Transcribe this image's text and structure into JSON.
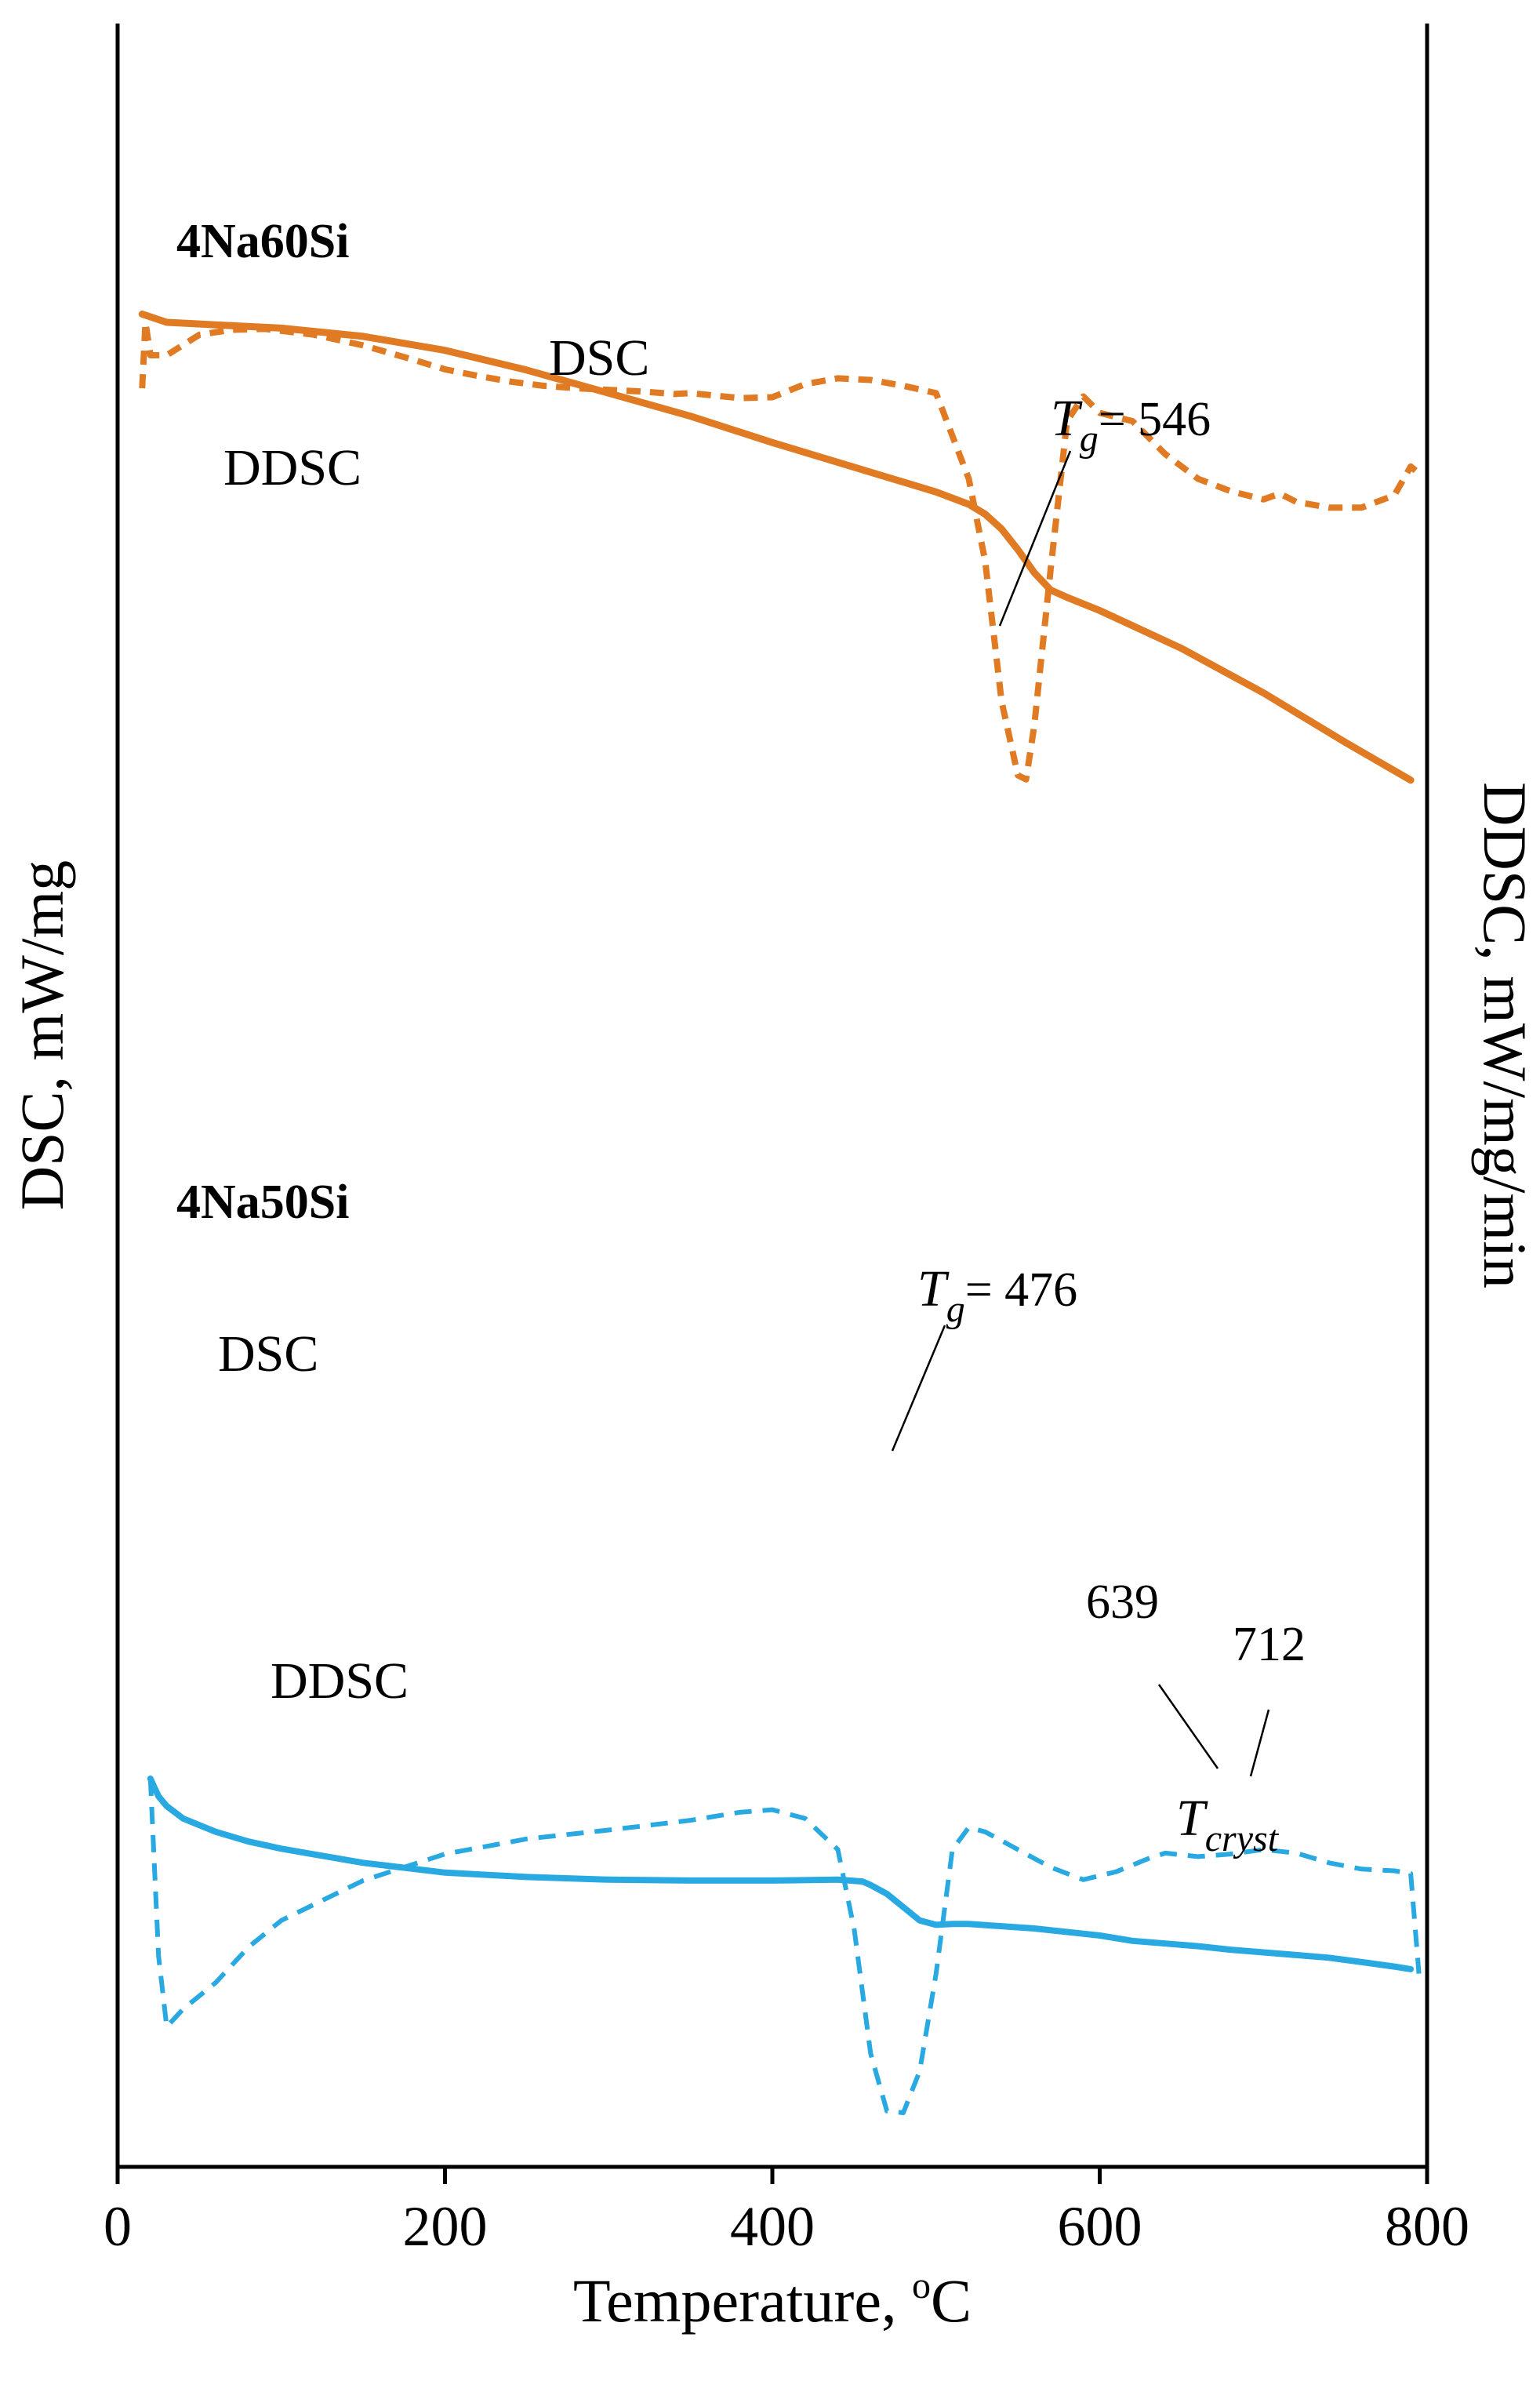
{
  "chart_data": {
    "type": "line",
    "xlabel": "Temperature, ",
    "xlabel_sup": "o",
    "xlabel_unit": "C",
    "ylabel_left": "DSC, mW/mg",
    "ylabel_right": "DDSC, mW/mg/min",
    "xlim": [
      0,
      800
    ],
    "xticks": [
      "0",
      "200",
      "400",
      "600",
      "800"
    ],
    "xtick_values": [
      0,
      200,
      400,
      600,
      800
    ],
    "grid": false,
    "panels": [
      {
        "name": "4Na60Si",
        "color": "#E07B24",
        "series": [
          {
            "name": "DSC",
            "style": "solid",
            "x": [
              15,
              30,
              60,
              100,
              150,
              200,
              250,
              300,
              350,
              400,
              450,
              500,
              520,
              530,
              540,
              550,
              560,
              570,
              580,
              600,
              650,
              700,
              750,
              790
            ],
            "y": [
              99.0,
              98.0,
              97.7,
              97.3,
              96.3,
              94.6,
              92.2,
              89.4,
              86.6,
              83.4,
              80.4,
              77.4,
              75.9,
              74.7,
              72.9,
              70.4,
              67.6,
              65.5,
              64.6,
              63.0,
              58.4,
              53.0,
              47.0,
              42.4
            ]
          },
          {
            "name": "DDSC",
            "style": "dashed",
            "x": [
              15,
              17,
              20,
              30,
              50,
              70,
              90,
              120,
              150,
              180,
              200,
              220,
              240,
              260,
              280,
              300,
              320,
              340,
              350,
              360,
              380,
              400,
              420,
              440,
              460,
              480,
              500,
              520,
              530,
              540,
              550,
              555,
              560,
              570,
              580,
              590,
              600,
              620,
              640,
              660,
              680,
              700,
              710,
              720,
              740,
              760,
              780,
              790,
              793
            ],
            "y": [
              90,
              98,
              94,
              94,
              96.5,
              97.1,
              97.2,
              96.5,
              95.2,
              93.5,
              92.3,
              91.5,
              90.8,
              90.3,
              90.0,
              89.8,
              89.6,
              89.3,
              89.4,
              89.2,
              88.8,
              88.9,
              90.5,
              91.2,
              91.0,
              90.3,
              89.4,
              79,
              69,
              52,
              43,
              42.5,
              49,
              68,
              86,
              89,
              87,
              86,
              82,
              79,
              77.5,
              76.5,
              77.2,
              76.2,
              75.5,
              75.5,
              77.0,
              80.5,
              80
            ]
          }
        ],
        "labels": {
          "dsc": "DSC",
          "ddsc": "DDSC"
        },
        "tg_prefix": "T",
        "tg_sub": "g",
        "tg_value": "= 546"
      },
      {
        "name": "4Na50Si",
        "color": "#29A9E1",
        "series": [
          {
            "name": "DSC",
            "style": "solid",
            "x": [
              20,
              25,
              30,
              40,
              60,
              80,
              100,
              150,
              200,
              250,
              300,
              350,
              400,
              440,
              455,
              460,
              470,
              480,
              490,
              500,
              510,
              520,
              560,
              600,
              620,
              640,
              660,
              680,
              700,
              720,
              740,
              760,
              780,
              790
            ],
            "y": [
              40.0,
              38.0,
              36.9,
              35.5,
              34.0,
              32.9,
              32.1,
              30.5,
              29.4,
              28.9,
              28.6,
              28.5,
              28.5,
              28.6,
              28.4,
              28.0,
              27.0,
              25.5,
              24.0,
              23.5,
              23.6,
              23.6,
              23.1,
              22.3,
              21.7,
              21.4,
              21.1,
              20.7,
              20.4,
              20.1,
              19.8,
              19.3,
              18.8,
              18.5
            ]
          },
          {
            "name": "DDSC",
            "style": "dashed",
            "x": [
              20,
              25,
              30,
              40,
              60,
              80,
              100,
              150,
              200,
              250,
              300,
              350,
              380,
              400,
              420,
              440,
              450,
              460,
              470,
              480,
              490,
              500,
              510,
              520,
              530,
              550,
              570,
              590,
              610,
              630,
              640,
              660,
              680,
              700,
              720,
              740,
              760,
              780,
              790,
              795
            ],
            "y": [
              40,
              20,
              12,
              14,
              17,
              21,
              24,
              28.5,
              31.5,
              33.2,
              34.2,
              35.3,
              36.2,
              36.5,
              35.5,
              32,
              23,
              9,
              2.5,
              2.3,
              7,
              18,
              32,
              34.5,
              34,
              32,
              30,
              28.6,
              29.5,
              31,
              31.6,
              31.2,
              31.5,
              32.0,
              31.6,
              30.5,
              29.8,
              29.6,
              29.3,
              18
            ]
          }
        ],
        "labels": {
          "dsc": "DSC",
          "ddsc": "DDSC"
        },
        "tg_prefix": "T",
        "tg_sub": "g",
        "tg_value": "= 476",
        "cryst_values": [
          "639",
          "712"
        ],
        "cryst_prefix": "T",
        "cryst_sub": "cryst"
      }
    ]
  }
}
